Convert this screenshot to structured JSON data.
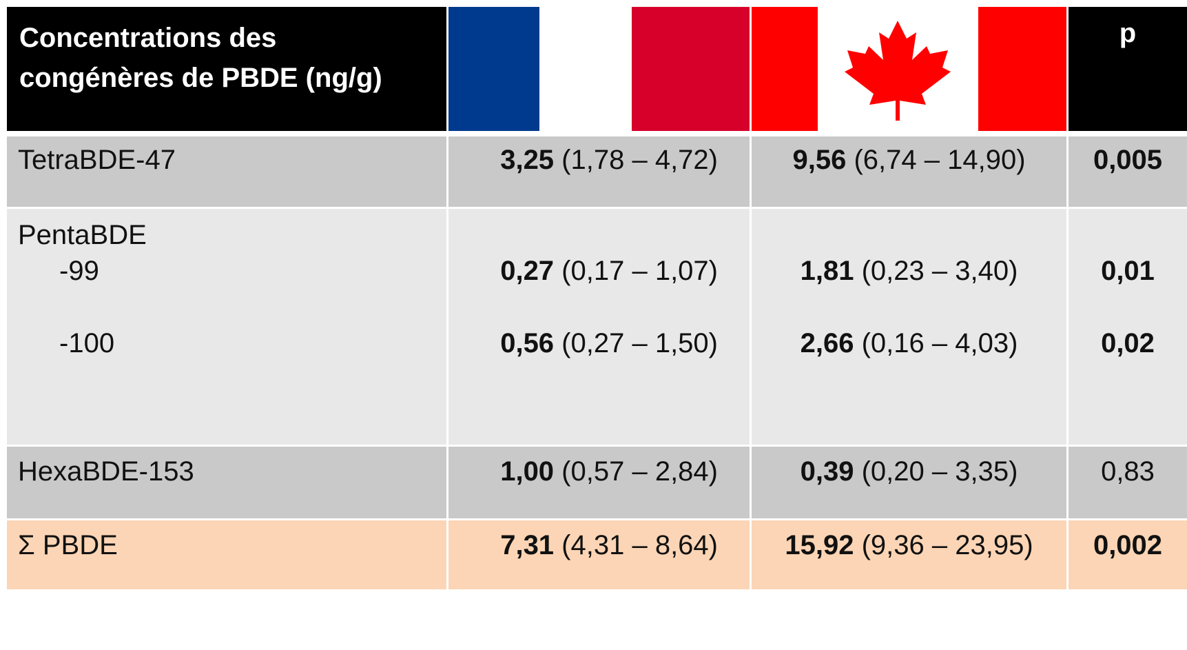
{
  "header": {
    "title_line1": "Concentrations des",
    "title_line2": "congénères de PBDE (ng/g)",
    "col_france": "france-flag",
    "col_canada": "canada-flag",
    "col_p": "p"
  },
  "rows": {
    "tetra": {
      "label": "TetraBDE-47",
      "fr_median": "3,25",
      "fr_range": " (1,78 – 4,72)",
      "ca_median": "9,56",
      "ca_range": " (6,74 – 14,90)",
      "p": "0,005"
    },
    "penta": {
      "label": "PentaBDE",
      "sub99": {
        "label": "-99",
        "fr_median": "0,27",
        "fr_range": " (0,17 – 1,07)",
        "ca_median": "1,81",
        "ca_range": " (0,23 – 3,40)",
        "p": "0,01"
      },
      "sub100": {
        "label": "-100",
        "fr_median": "0,56",
        "fr_range": " (0,27 – 1,50)",
        "ca_median": "2,66",
        "ca_range": " (0,16 – 4,03)",
        "p": "0,02"
      }
    },
    "hexa": {
      "label": "HexaBDE-153",
      "fr_median": "1,00",
      "fr_range": " (0,57 – 2,84)",
      "ca_median": "0,39",
      "ca_range": " (0,20 – 3,35)",
      "p": "0,83"
    },
    "sum": {
      "label": "Σ PBDE",
      "fr_median": "7,31",
      "fr_range": " (4,31 – 8,64)",
      "ca_median": "15,92",
      "ca_range": " (9,36 – 23,95)",
      "p": "0,002"
    }
  },
  "colors": {
    "header_bg": "#000000",
    "row_gray": "#c9c9c9",
    "row_light": "#e8e8e8",
    "row_sum": "#fbd5b5",
    "france_blue": "#003a8e",
    "france_red": "#d6002b",
    "canada_red": "#ff0000"
  }
}
